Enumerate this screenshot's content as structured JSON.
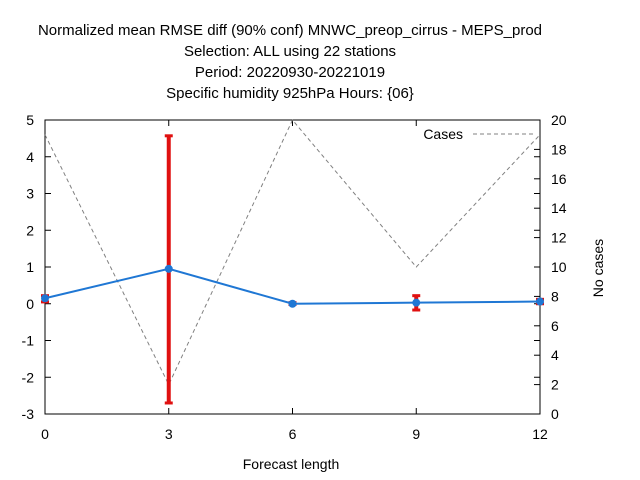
{
  "chart_data": {
    "type": "line",
    "title_lines": [
      "Normalized mean RMSE diff (90% conf) MNWC_preop_cirrus - MEPS_prod",
      "Selection: ALL using    22 stations",
      "Period: 20220930-20221019",
      "Specific humidity 925hPa   Hours: {06}"
    ],
    "xlabel": "Forecast length",
    "ylabel": "",
    "y2label": "No cases",
    "x": [
      0,
      3,
      6,
      9,
      12
    ],
    "xlim": [
      0,
      12
    ],
    "ylim": [
      -3,
      5
    ],
    "y2lim": [
      0,
      20
    ],
    "xticks": [
      "0",
      "3",
      "6",
      "9",
      "12"
    ],
    "yticks": [
      "-3",
      "-2",
      "-1",
      "0",
      "1",
      "2",
      "3",
      "4",
      "5"
    ],
    "y2ticks": [
      "0",
      "2",
      "4",
      "6",
      "8",
      "10",
      "12",
      "14",
      "16",
      "18",
      "20"
    ],
    "grid": false,
    "series": [
      {
        "axis": "y",
        "values": [
          0.15,
          0.95,
          0.0,
          0.03,
          0.06
        ],
        "error_low": [
          0.05,
          -2.7,
          -0.02,
          -0.17,
          0.0
        ],
        "error_high": [
          0.22,
          4.57,
          0.03,
          0.22,
          0.12
        ],
        "color": "#1f77d4",
        "error_color": "#e01010"
      },
      {
        "name": "Cases",
        "axis": "y2",
        "values": [
          19,
          2,
          20,
          10,
          19
        ],
        "color": "#808080",
        "dashed": true
      }
    ],
    "legend": {
      "position": "top-right",
      "entries": [
        "Cases"
      ]
    }
  }
}
